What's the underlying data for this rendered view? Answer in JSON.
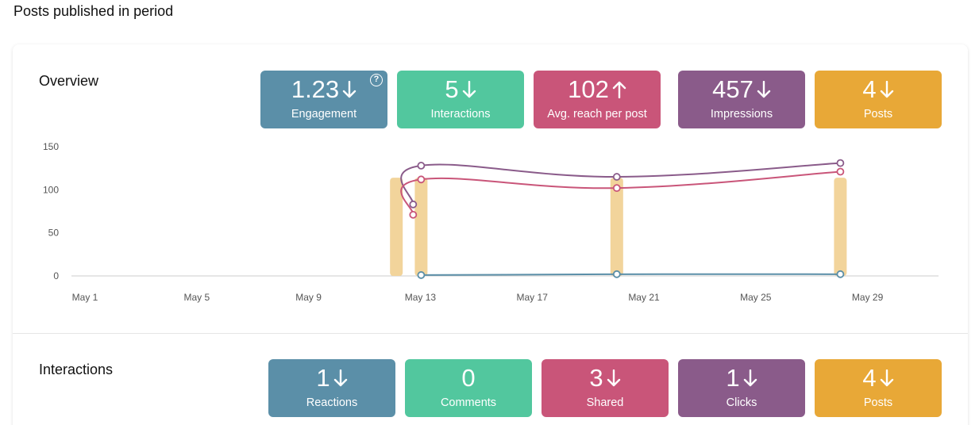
{
  "page": {
    "title": "Posts published in period"
  },
  "overview": {
    "title": "Overview",
    "stats": [
      {
        "value": "1.23",
        "trend": "down",
        "label": "Engagement",
        "color": "#5b8fa8",
        "help": "?"
      },
      {
        "value": "5",
        "trend": "down",
        "label": "Interactions",
        "color": "#52c79e"
      },
      {
        "value": "102",
        "trend": "up",
        "label": "Avg. reach per post",
        "color": "#c95579"
      },
      {
        "value": "457",
        "trend": "down",
        "label": "Impressions",
        "color": "#8a5b8a"
      },
      {
        "value": "4",
        "trend": "down",
        "label": "Posts",
        "color": "#e8a837"
      }
    ]
  },
  "interactions": {
    "title": "Interactions",
    "stats": [
      {
        "value": "1",
        "trend": "down",
        "label": "Reactions",
        "color": "#5b8fa8"
      },
      {
        "value": "0",
        "trend": "none",
        "label": "Comments",
        "color": "#52c79e"
      },
      {
        "value": "3",
        "trend": "down",
        "label": "Shared",
        "color": "#c95579"
      },
      {
        "value": "1",
        "trend": "down",
        "label": "Clicks",
        "color": "#8a5b8a"
      },
      {
        "value": "4",
        "trend": "down",
        "label": "Posts",
        "color": "#e8a837"
      }
    ]
  },
  "chart_data": {
    "type": "line",
    "x_ticks": [
      "May 1",
      "May 5",
      "May 9",
      "May 13",
      "May 17",
      "May 21",
      "May 25",
      "May 29"
    ],
    "y_ticks": [
      "0",
      "50",
      "100",
      "150"
    ],
    "ylim": [
      0,
      150
    ],
    "grid": false,
    "bars": {
      "color": "#f2d49b",
      "points": [
        {
          "day": 12,
          "value": 114
        },
        {
          "day": 13,
          "value": 114
        },
        {
          "day": 20,
          "value": 114
        },
        {
          "day": 28,
          "value": 114
        }
      ]
    },
    "series": [
      {
        "color": "#8a5b8a",
        "points": [
          {
            "day": 12.6,
            "value": 83
          },
          {
            "day": 13,
            "value": 128
          },
          {
            "day": 20,
            "value": 115
          },
          {
            "day": 28,
            "value": 131
          }
        ]
      },
      {
        "color": "#c95579",
        "points": [
          {
            "day": 12.6,
            "value": 71
          },
          {
            "day": 13,
            "value": 112
          },
          {
            "day": 20,
            "value": 102
          },
          {
            "day": 28,
            "value": 121
          }
        ]
      },
      {
        "color": "#5b8fa8",
        "points": [
          {
            "day": 13,
            "value": 1
          },
          {
            "day": 20,
            "value": 2
          },
          {
            "day": 28,
            "value": 2
          }
        ]
      }
    ]
  }
}
